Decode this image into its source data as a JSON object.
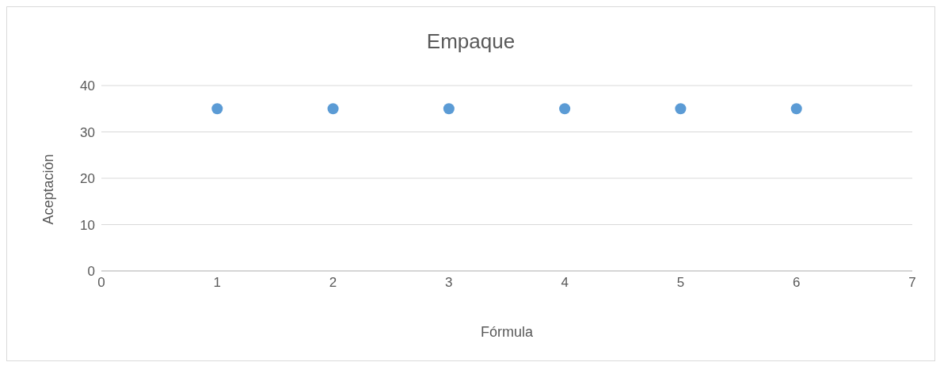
{
  "chart_data": {
    "type": "scatter",
    "title": "Empaque",
    "xlabel": "Fórmula",
    "ylabel": "Aceptación",
    "x": [
      1,
      2,
      3,
      4,
      5,
      6
    ],
    "series": [
      {
        "color": "#5b9bd5",
        "values": [
          35,
          35,
          35,
          35,
          35,
          35
        ]
      }
    ],
    "xlim": [
      0,
      7
    ],
    "xticks": [
      0,
      1,
      2,
      3,
      4,
      5,
      6,
      7
    ],
    "ylim": [
      0,
      40
    ],
    "yticks": [
      0,
      10,
      20,
      30,
      40
    ],
    "grid": "y",
    "marker": "circle"
  }
}
